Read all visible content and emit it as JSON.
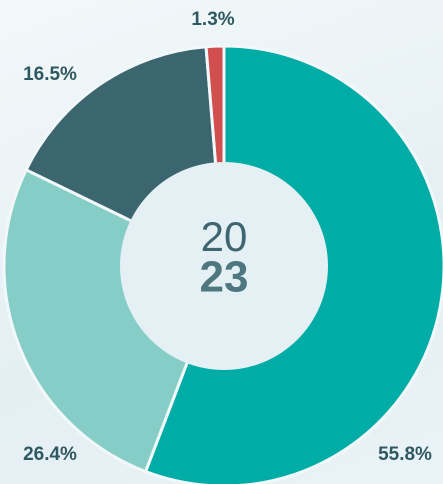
{
  "chart_data": {
    "type": "donut",
    "center_text": [
      "20",
      "23"
    ],
    "categories": [
      null,
      null,
      null,
      null
    ],
    "values": [
      55.8,
      26.4,
      16.5,
      1.3
    ],
    "value_labels": [
      "55.8%",
      "26.4%",
      "16.5%",
      "1.3%"
    ],
    "colors": [
      "#00aca6",
      "#86cdc7",
      "#3b6670",
      "#d14f4f"
    ]
  }
}
